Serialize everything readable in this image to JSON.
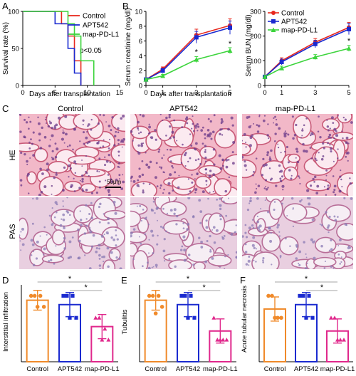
{
  "panel_letters": [
    "A",
    "B",
    "C",
    "D",
    "E",
    "F"
  ],
  "colors": {
    "control": "#e8281e",
    "apt542": "#1a2ad0",
    "mapPDL1": "#3cd43c",
    "bar_control": "#f08a2a",
    "bar_apt542": "#1a2ad0",
    "bar_mapPDL1": "#e0288c",
    "he_stain": "#d2607e",
    "pas_stain": "#c47aa4"
  },
  "chart_data": [
    {
      "id": "A",
      "type": "line",
      "step": true,
      "xlabel": "Days after transplantation",
      "ylabel": "Survival rate (%)",
      "xlim": [
        0,
        15
      ],
      "ylim": [
        0,
        100
      ],
      "xticks": [
        0,
        5,
        10,
        15
      ],
      "yticks": [
        0,
        50,
        100
      ],
      "legend_position": "top-right",
      "annotation": "p<0.05",
      "series": [
        {
          "name": "Control",
          "color_key": "control",
          "x": [
            0,
            5,
            6,
            7,
            8,
            9
          ],
          "y": [
            100,
            100,
            83.3,
            66.7,
            33.3,
            0
          ]
        },
        {
          "name": "APT542",
          "color_key": "apt542",
          "x": [
            0,
            4,
            5,
            7,
            8,
            9
          ],
          "y": [
            100,
            100,
            83.3,
            50,
            16.7,
            0
          ]
        },
        {
          "name": "map-PD-L1",
          "color_key": "mapPDL1",
          "x": [
            0,
            6,
            7,
            8,
            9,
            11
          ],
          "y": [
            100,
            100,
            83.3,
            66.7,
            33.3,
            0
          ]
        }
      ]
    },
    {
      "id": "B1",
      "type": "line",
      "xlabel": "Days after transplantation",
      "ylabel": "Serum creatinine (mg/dl)",
      "xlim": [
        0,
        5
      ],
      "ylim": [
        0,
        10
      ],
      "xticks": [
        0,
        1,
        3,
        5
      ],
      "yticks": [
        0,
        2,
        4,
        6,
        8,
        10
      ],
      "legend_position": "none",
      "x": [
        0,
        1,
        3,
        5
      ],
      "series": [
        {
          "name": "Control",
          "color_key": "control",
          "values": [
            0.8,
            2.2,
            6.8,
            8.1
          ],
          "errors": [
            0.2,
            0.3,
            0.8,
            0.9
          ]
        },
        {
          "name": "APT542",
          "color_key": "apt542",
          "values": [
            0.8,
            2.0,
            6.5,
            7.8
          ],
          "errors": [
            0.2,
            0.3,
            0.8,
            0.9
          ]
        },
        {
          "name": "map-PD-L1",
          "color_key": "mapPDL1",
          "values": [
            0.8,
            1.3,
            3.5,
            4.7
          ],
          "errors": [
            0.1,
            0.2,
            0.4,
            0.4
          ]
        }
      ],
      "significance": [
        {
          "x": 3,
          "y": 4.2,
          "text": "*"
        },
        {
          "x": 5,
          "y": 5.3,
          "text": "*"
        }
      ]
    },
    {
      "id": "B2",
      "type": "line",
      "ylabel": "Serum BUN (mg/dl)",
      "xlim": [
        0,
        5
      ],
      "ylim": [
        0,
        300
      ],
      "xticks": [
        0,
        1,
        3,
        5
      ],
      "yticks": [
        0,
        100,
        200,
        300
      ],
      "legend_position": "top-left",
      "x": [
        0,
        1,
        3,
        5
      ],
      "series": [
        {
          "name": "Control",
          "color_key": "control",
          "values": [
            35,
            100,
            175,
            235
          ],
          "errors": [
            5,
            12,
            15,
            20
          ]
        },
        {
          "name": "APT542",
          "color_key": "apt542",
          "values": [
            35,
            95,
            168,
            228
          ],
          "errors": [
            5,
            12,
            15,
            22
          ]
        },
        {
          "name": "map-PD-L1",
          "color_key": "mapPDL1",
          "values": [
            35,
            70,
            115,
            150
          ],
          "errors": [
            5,
            8,
            10,
            12
          ]
        }
      ],
      "significance": [
        {
          "x": 5,
          "y": 170,
          "text": "*"
        }
      ]
    },
    {
      "id": "D",
      "type": "bar",
      "ylabel": "Interstitial infiltration",
      "categories": [
        "Control",
        "APT542",
        "map-PD-L1"
      ],
      "values": [
        2.8,
        2.6,
        1.6
      ],
      "errors": [
        0.45,
        0.55,
        0.55
      ],
      "points": [
        [
          3,
          3,
          3,
          2.5,
          2.5
        ],
        [
          3,
          3,
          3,
          2,
          2
        ],
        [
          2,
          2,
          1.5,
          1,
          1
        ]
      ],
      "ylim": [
        0,
        3.5
      ],
      "significance": [
        "*",
        "*"
      ]
    },
    {
      "id": "E",
      "type": "bar",
      "ylabel": "Tubulitis",
      "categories": [
        "Control",
        "APT542",
        "map-PD-L1"
      ],
      "values": [
        2.8,
        2.6,
        1.4
      ],
      "errors": [
        0.45,
        0.55,
        0.55
      ],
      "points": [
        [
          3,
          3,
          3,
          2.5,
          2.2
        ],
        [
          3,
          3,
          3,
          2,
          2
        ],
        [
          2,
          1,
          1,
          1,
          1
        ]
      ],
      "ylim": [
        0,
        3.5
      ],
      "significance": [
        "*",
        "*"
      ]
    },
    {
      "id": "F",
      "type": "bar",
      "ylabel": "Acute tubular necrosis",
      "categories": [
        "Control",
        "APT542",
        "map-PD-L1"
      ],
      "values": [
        2.4,
        2.6,
        1.4
      ],
      "errors": [
        0.55,
        0.55,
        0.55
      ],
      "points": [
        [
          3,
          3,
          2,
          2,
          2
        ],
        [
          3,
          3,
          3,
          2,
          2
        ],
        [
          2,
          2,
          1,
          1,
          1
        ]
      ],
      "ylim": [
        0,
        3.5
      ],
      "significance": [
        "*",
        "*"
      ]
    }
  ],
  "histology": {
    "columns": [
      "Control",
      "APT542",
      "map-PD-L1"
    ],
    "rows": [
      "HE",
      "PAS"
    ],
    "scale_bar_label": "50μm"
  }
}
